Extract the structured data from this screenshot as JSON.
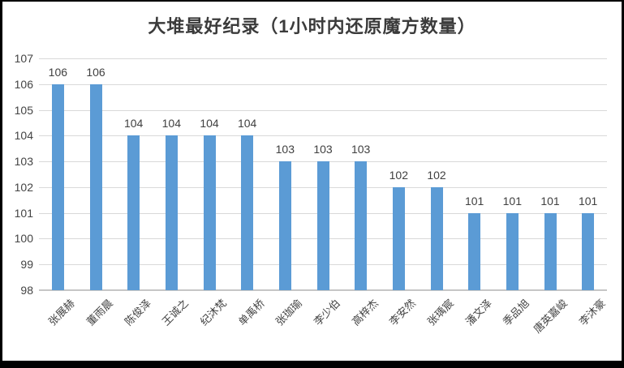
{
  "chart_data": {
    "type": "bar",
    "title": "大堆最好纪录（1小时内还原魔方数量）",
    "categories": [
      "张展赫",
      "董雨晨",
      "陈俊泽",
      "王诚之",
      "纪沐梵",
      "单禹桥",
      "张珈瑜",
      "李少伯",
      "高梓杰",
      "李安然",
      "张瑀宸",
      "潘文泽",
      "季品旭",
      "唐英嘉峻",
      "李沐豪"
    ],
    "values": [
      106,
      106,
      104,
      104,
      104,
      104,
      103,
      103,
      103,
      102,
      102,
      101,
      101,
      101,
      101
    ],
    "xlabel": "",
    "ylabel": "",
    "ylim": [
      98,
      107
    ],
    "yticks": [
      98,
      99,
      100,
      101,
      102,
      103,
      104,
      105,
      106,
      107
    ],
    "grid": true,
    "legend": false,
    "data_labels": true,
    "x_label_rotation_deg": -45,
    "colors": {
      "bar": "#5b9bd5",
      "gridline": "#d9d9d9",
      "axis_line": "#c6c6c6",
      "tick_text": "#444444",
      "data_label_text": "#404040",
      "title_text": "#3b3b3b",
      "frame": "#000000",
      "background": "#ffffff"
    }
  }
}
